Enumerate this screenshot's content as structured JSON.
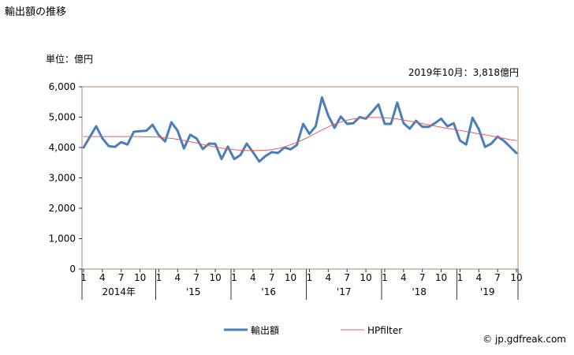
{
  "title": "輸出額の推移",
  "unit_label": "単位：億円",
  "latest_note": "2019年10月：3,818億円",
  "source": "© jp.gdfreak.com",
  "chart_data": {
    "type": "line",
    "ylim": [
      0,
      6000
    ],
    "yticks": [
      0,
      1000,
      2000,
      3000,
      4000,
      5000,
      6000
    ],
    "ytick_labels": [
      "0",
      "1,000",
      "2,000",
      "3,000",
      "4,000",
      "5,000",
      "6,000"
    ],
    "x": [
      "2014-01",
      "2014-02",
      "2014-03",
      "2014-04",
      "2014-05",
      "2014-06",
      "2014-07",
      "2014-08",
      "2014-09",
      "2014-10",
      "2014-11",
      "2014-12",
      "2015-01",
      "2015-02",
      "2015-03",
      "2015-04",
      "2015-05",
      "2015-06",
      "2015-07",
      "2015-08",
      "2015-09",
      "2015-10",
      "2015-11",
      "2015-12",
      "2016-01",
      "2016-02",
      "2016-03",
      "2016-04",
      "2016-05",
      "2016-06",
      "2016-07",
      "2016-08",
      "2016-09",
      "2016-10",
      "2016-11",
      "2016-12",
      "2017-01",
      "2017-02",
      "2017-03",
      "2017-04",
      "2017-05",
      "2017-06",
      "2017-07",
      "2017-08",
      "2017-09",
      "2017-10",
      "2017-11",
      "2017-12",
      "2018-01",
      "2018-02",
      "2018-03",
      "2018-04",
      "2018-05",
      "2018-06",
      "2018-07",
      "2018-08",
      "2018-09",
      "2018-10",
      "2018-11",
      "2018-12",
      "2019-01",
      "2019-02",
      "2019-03",
      "2019-04",
      "2019-05",
      "2019-06",
      "2019-07",
      "2019-08",
      "2019-09",
      "2019-10"
    ],
    "month_tick_labels": [
      "1",
      "4",
      "7",
      "10"
    ],
    "year_labels": [
      "2014年",
      "'15",
      "'16",
      "'17",
      "'18",
      "'19"
    ],
    "series": [
      {
        "name": "輸出額",
        "color": "#4a7ebb",
        "values": [
          4000,
          4350,
          4700,
          4300,
          4050,
          4020,
          4180,
          4100,
          4520,
          4540,
          4550,
          4750,
          4400,
          4200,
          4830,
          4550,
          3970,
          4420,
          4300,
          3950,
          4130,
          4120,
          3620,
          4030,
          3620,
          3750,
          4130,
          3850,
          3540,
          3720,
          3850,
          3820,
          4000,
          3940,
          4080,
          4780,
          4450,
          4700,
          5650,
          5050,
          4650,
          5020,
          4780,
          4800,
          5000,
          4950,
          5180,
          5420,
          4780,
          4780,
          5480,
          4800,
          4620,
          4880,
          4680,
          4680,
          4800,
          4950,
          4700,
          4800,
          4230,
          4100,
          4980,
          4600,
          4020,
          4130,
          4360,
          4220,
          4020,
          3818
        ]
      },
      {
        "name": "HPfilter",
        "color": "#e06060",
        "values": [
          4360,
          4360,
          4360,
          4360,
          4360,
          4360,
          4360,
          4360,
          4360,
          4360,
          4350,
          4350,
          4340,
          4320,
          4300,
          4270,
          4230,
          4190,
          4150,
          4100,
          4060,
          4020,
          3980,
          3950,
          3930,
          3910,
          3900,
          3900,
          3900,
          3910,
          3930,
          3970,
          4020,
          4090,
          4170,
          4260,
          4360,
          4470,
          4580,
          4680,
          4770,
          4840,
          4900,
          4940,
          4970,
          4990,
          4990,
          4990,
          4980,
          4960,
          4940,
          4900,
          4870,
          4830,
          4790,
          4750,
          4710,
          4670,
          4630,
          4600,
          4560,
          4530,
          4490,
          4450,
          4420,
          4380,
          4340,
          4300,
          4260,
          4230
        ]
      }
    ]
  }
}
